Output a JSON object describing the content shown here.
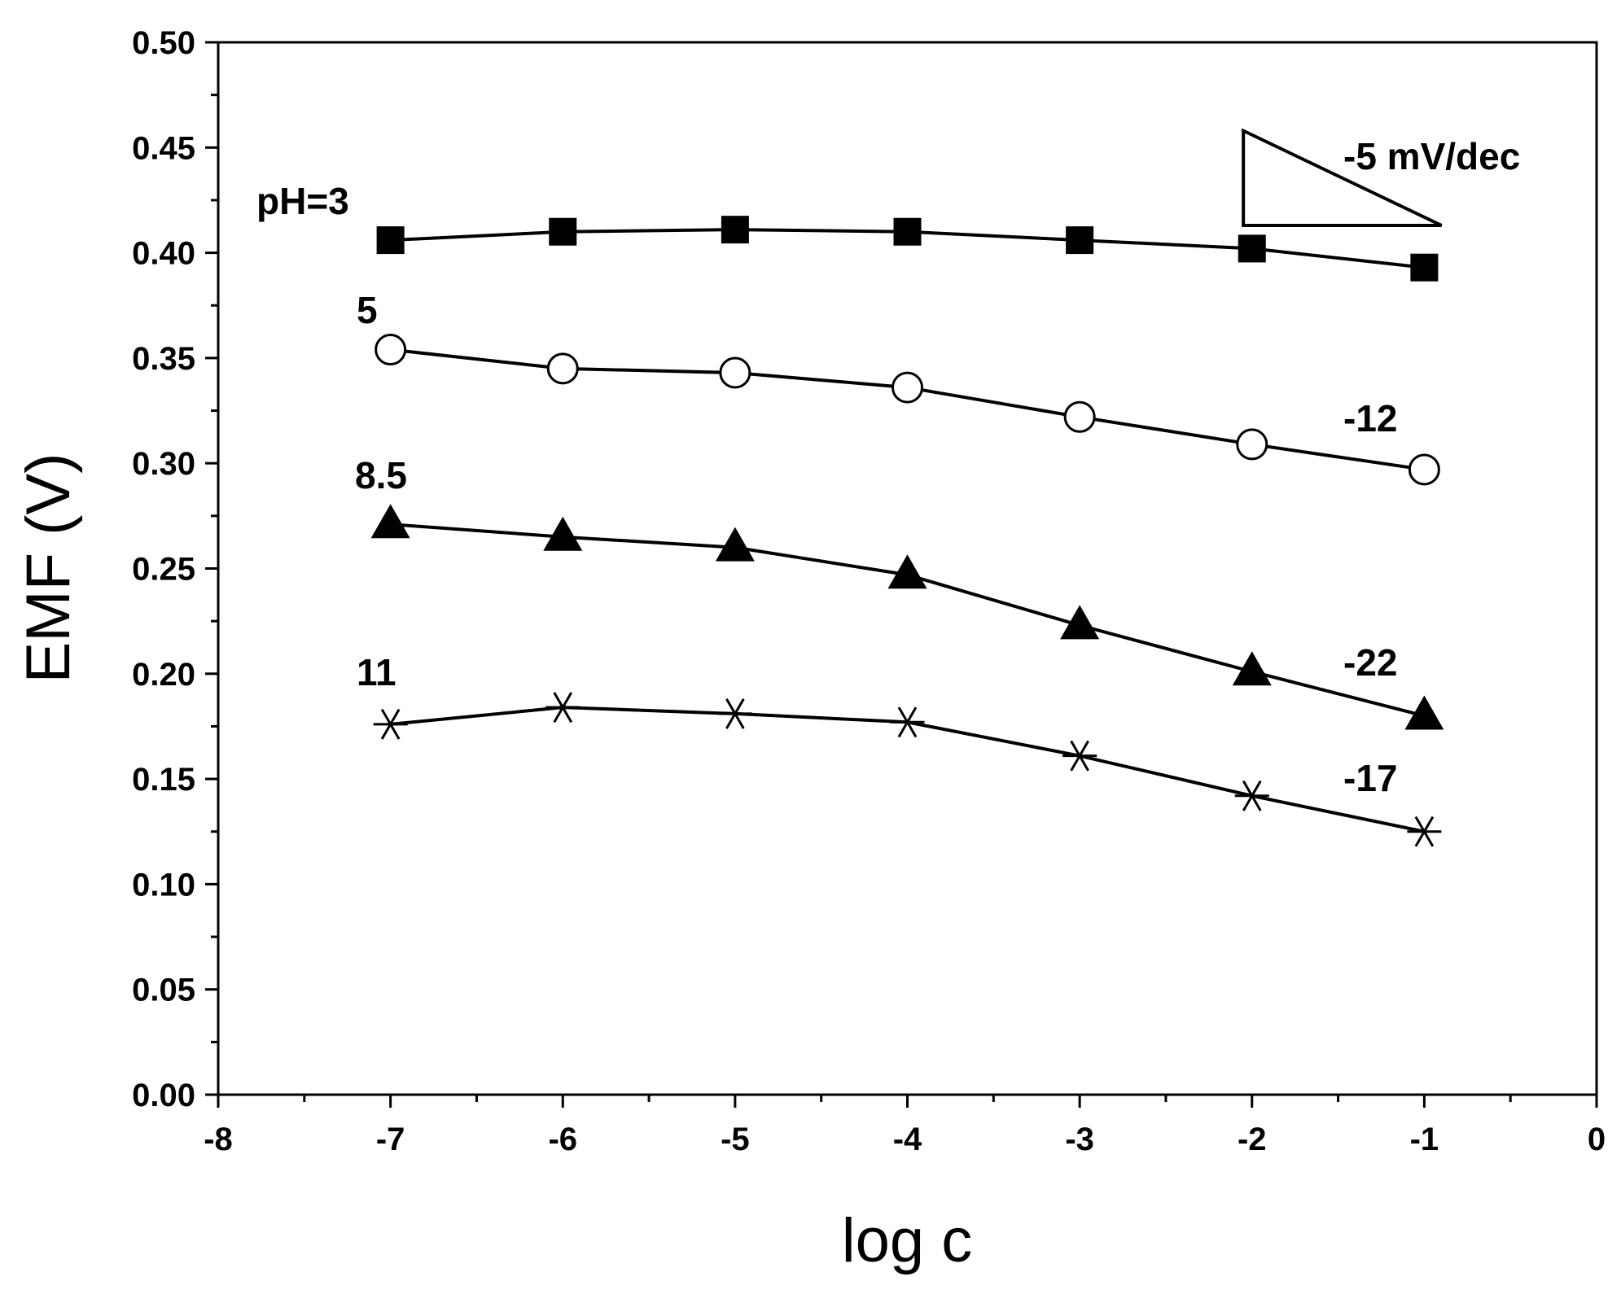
{
  "chart_data": {
    "type": "line",
    "title": "",
    "xlabel": "log c",
    "ylabel": "EMF (V)",
    "xlim": [
      -8,
      0
    ],
    "ylim": [
      0.0,
      0.5
    ],
    "x_ticks": [
      "-8",
      "-7",
      "-6",
      "-5",
      "-4",
      "-3",
      "-2",
      "-1",
      "0"
    ],
    "y_ticks": [
      "0.00",
      "0.05",
      "0.10",
      "0.15",
      "0.20",
      "0.25",
      "0.30",
      "0.35",
      "0.40",
      "0.45",
      "0.50"
    ],
    "grid": false,
    "x": [
      -7,
      -6,
      -5,
      -4,
      -3,
      -2,
      -1
    ],
    "series": [
      {
        "name": "pH=3",
        "marker": "filled-square",
        "values": [
          0.406,
          0.41,
          0.411,
          0.41,
          0.406,
          0.402,
          0.393
        ]
      },
      {
        "name": "5",
        "marker": "open-circle",
        "values": [
          0.354,
          0.345,
          0.343,
          0.336,
          0.322,
          0.309,
          0.297
        ]
      },
      {
        "name": "8.5",
        "marker": "filled-triangle",
        "values": [
          0.271,
          0.265,
          0.26,
          0.247,
          0.223,
          0.201,
          0.18
        ]
      },
      {
        "name": "11",
        "marker": "asterisk",
        "values": [
          0.176,
          0.184,
          0.181,
          0.177,
          0.161,
          0.142,
          0.125
        ]
      }
    ],
    "annotations": {
      "ph3_label": "pH=3",
      "ph5_label": "5",
      "ph85_label": "8.5",
      "ph11_label": "11",
      "slope_ph3": "-5 mV/dec",
      "slope_ph5": "-12",
      "slope_ph85": "-22",
      "slope_ph11": "-17"
    },
    "slope_triangle": {
      "x": [
        -2.05,
        -0.9
      ],
      "y": [
        0.413,
        0.458
      ]
    }
  }
}
